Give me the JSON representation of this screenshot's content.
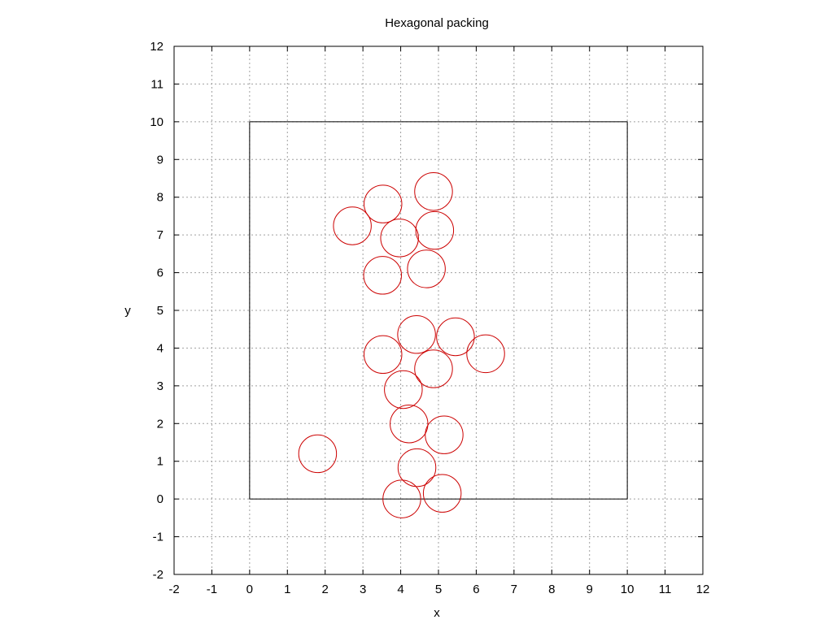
{
  "chart_data": {
    "type": "scatter",
    "title": "Hexagonal packing",
    "xlabel": "x",
    "ylabel": "y",
    "xlim": [
      -2,
      12
    ],
    "ylim": [
      -2,
      12
    ],
    "xticks": [
      -2,
      -1,
      0,
      1,
      2,
      3,
      4,
      5,
      6,
      7,
      8,
      9,
      10,
      11,
      12
    ],
    "yticks": [
      -2,
      -1,
      0,
      1,
      2,
      3,
      4,
      5,
      6,
      7,
      8,
      9,
      10,
      11,
      12
    ],
    "grid": true,
    "circle_radius": 0.5,
    "circle_color": "#cc0000",
    "box": {
      "x": [
        0,
        10
      ],
      "y": [
        0,
        10
      ],
      "color": "#000000"
    },
    "circles": [
      {
        "x": 4.87,
        "y": 8.15
      },
      {
        "x": 3.53,
        "y": 7.82
      },
      {
        "x": 2.72,
        "y": 7.24
      },
      {
        "x": 3.97,
        "y": 6.92
      },
      {
        "x": 4.9,
        "y": 7.12
      },
      {
        "x": 4.68,
        "y": 6.1
      },
      {
        "x": 3.52,
        "y": 5.93
      },
      {
        "x": 4.42,
        "y": 4.36
      },
      {
        "x": 5.45,
        "y": 4.3
      },
      {
        "x": 6.25,
        "y": 3.85
      },
      {
        "x": 3.53,
        "y": 3.83
      },
      {
        "x": 4.87,
        "y": 3.45
      },
      {
        "x": 4.07,
        "y": 2.9
      },
      {
        "x": 4.22,
        "y": 1.99
      },
      {
        "x": 5.15,
        "y": 1.7
      },
      {
        "x": 1.8,
        "y": 1.2
      },
      {
        "x": 4.43,
        "y": 0.83
      },
      {
        "x": 5.1,
        "y": 0.15
      },
      {
        "x": 4.03,
        "y": 0.0
      }
    ]
  }
}
